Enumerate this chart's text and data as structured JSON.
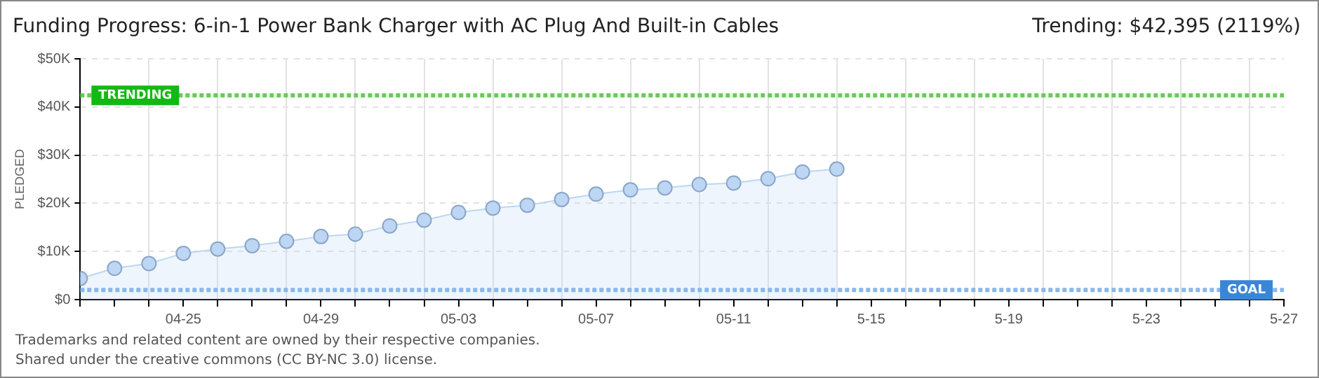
{
  "chart_data": {
    "type": "area",
    "title": "Funding Progress: 6-in-1 Power Bank Charger with AC Plug And Built-in Cables",
    "subtitle": "Trending: $42,395 (2119%)",
    "ylabel": "PLEDGED",
    "x": [
      "--04-22",
      "--04-23",
      "--04-24",
      "--04-25",
      "--04-26",
      "--04-27",
      "--04-28",
      "--04-29",
      "--04-30",
      "--05-01",
      "--05-02",
      "--05-03",
      "--05-04",
      "--05-05",
      "--05-06",
      "--05-07",
      "--05-08",
      "--05-09",
      "--05-10",
      "--05-11",
      "--05-12",
      "--05-13",
      "--05-14"
    ],
    "series": [
      {
        "color": "#bcd6f3",
        "values": [
          4400,
          6500,
          7500,
          9600,
          10500,
          11200,
          12100,
          13100,
          13600,
          15300,
          16500,
          18100,
          19000,
          19600,
          20800,
          21900,
          22800,
          23200,
          23900,
          24200,
          25100,
          26500,
          27100
        ]
      }
    ],
    "xlim": [
      "--04-22",
      "--05-27"
    ],
    "xticks": [
      {
        "value": "--04-25",
        "label": "04-25"
      },
      {
        "value": "--04-29",
        "label": "04-29"
      },
      {
        "value": "--05-03",
        "label": "05-03"
      },
      {
        "value": "--05-07",
        "label": "05-07"
      },
      {
        "value": "--05-11",
        "label": "05-11"
      },
      {
        "value": "--05-15",
        "label": "5-15"
      },
      {
        "value": "--05-19",
        "label": "5-19"
      },
      {
        "value": "--05-23",
        "label": "5-23"
      },
      {
        "value": "--05-27",
        "label": "5-27"
      }
    ],
    "ylim": [
      0,
      50000
    ],
    "yticks": [
      {
        "value": 0,
        "label": "$0"
      },
      {
        "value": 10000,
        "label": "$10K"
      },
      {
        "value": 20000,
        "label": "$20K"
      },
      {
        "value": 30000,
        "label": "$30K"
      },
      {
        "value": 40000,
        "label": "$40K"
      },
      {
        "value": 50000,
        "label": "$50K"
      }
    ],
    "ref_lines": [
      {
        "axis": "y",
        "value": 42395,
        "label": "TRENDING",
        "color": "#66cc55",
        "line_style": "dotted"
      },
      {
        "axis": "y",
        "value": 2000,
        "label": "GOAL",
        "color": "#88b8ea",
        "line_style": "dotted"
      }
    ],
    "grid": true,
    "marker": "circle",
    "legend": false,
    "annotations": [
      "Trademarks and related content are owned by their respective companies.",
      "Shared under the creative commons (CC BY-NC 3.0) license."
    ]
  }
}
